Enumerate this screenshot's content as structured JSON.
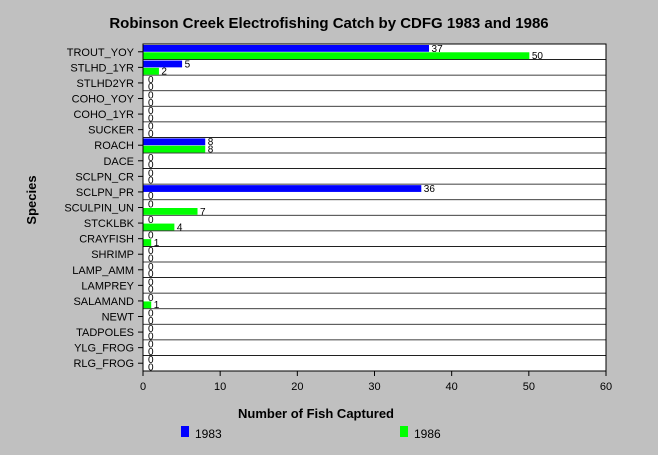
{
  "chart_data": {
    "type": "bar",
    "orientation": "horizontal",
    "title": "Robinson Creek Electrofishing Catch by CDFG 1983 and 1986",
    "xlabel": "Number of Fish Captured",
    "ylabel": "Species",
    "xlim": [
      0,
      60
    ],
    "xticks": [
      "0",
      "10",
      "20",
      "30",
      "40",
      "50",
      "60"
    ],
    "grid": true,
    "legend_position": "bottom",
    "categories": [
      "TROUT_YOY",
      "STLHD_1YR",
      "STLHD2YR",
      "COHO_YOY",
      "COHO_1YR",
      "SUCKER",
      "ROACH",
      "DACE",
      "SCLPN_CR",
      "SCLPN_PR",
      "SCULPIN_UN",
      "STCKLBK",
      "CRAYFISH",
      "SHRIMP",
      "LAMP_AMM",
      "LAMPREY",
      "SALAMAND",
      "NEWT",
      "TADPOLES",
      "YLG_FROG",
      "RLG_FROG"
    ],
    "series": [
      {
        "name": "1983",
        "color": "#0000ff",
        "values": [
          37,
          5,
          0,
          0,
          0,
          0,
          8,
          0,
          0,
          36,
          0,
          0,
          0,
          0,
          0,
          0,
          0,
          0,
          0,
          0,
          0
        ],
        "labels": [
          "37",
          "5",
          "0",
          "0",
          "0",
          "0",
          "8",
          "0",
          "0",
          "36",
          "0",
          "0",
          "0",
          "0",
          "0",
          "0",
          "0",
          "0",
          "0",
          "0",
          "0"
        ]
      },
      {
        "name": "1986",
        "color": "#00ff00",
        "values": [
          50,
          2,
          0,
          0,
          0,
          0,
          8,
          0,
          0,
          0,
          7,
          4,
          1,
          0,
          0,
          0,
          1,
          0,
          0,
          0,
          0
        ],
        "labels": [
          "50",
          "2",
          "0",
          "0",
          "0",
          "0",
          "8",
          "0",
          "0",
          "0",
          "7",
          "4",
          "1",
          "0",
          "0",
          "0",
          "1",
          "0",
          "0",
          "0",
          "0"
        ]
      }
    ]
  }
}
